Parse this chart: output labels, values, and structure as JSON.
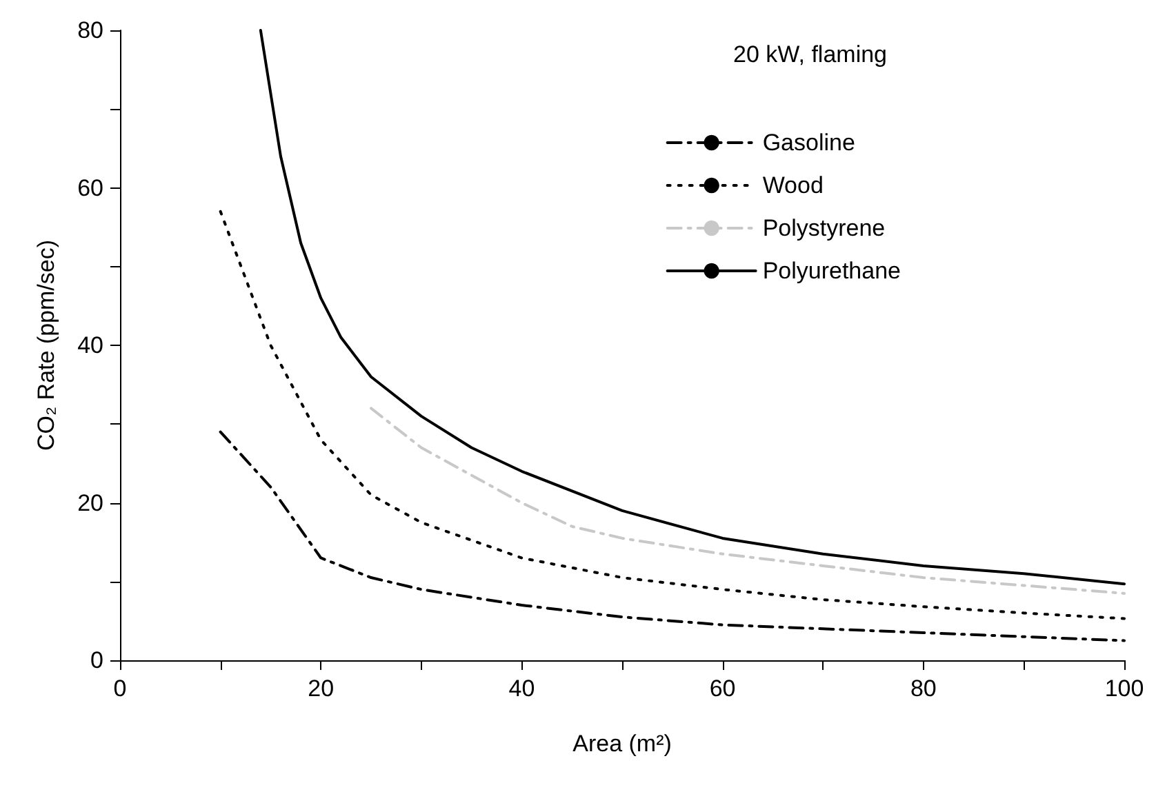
{
  "chart_data": {
    "type": "line",
    "title": "20 kW, flaming",
    "xlabel": "Area (m²)",
    "ylabel": "CO₂ Rate (ppm/sec)",
    "xlim": [
      0,
      100
    ],
    "ylim": [
      0,
      80
    ],
    "xticks": [
      0,
      {
        "value": 10,
        "label": null
      },
      20,
      {
        "value": 30,
        "label": null
      },
      40,
      {
        "value": 50,
        "label": null
      },
      60,
      {
        "value": 70,
        "label": null
      },
      80,
      {
        "value": 90,
        "label": null
      },
      100
    ],
    "yticks": [
      0,
      {
        "value": 10,
        "label": null
      },
      20,
      {
        "value": 30,
        "label": null
      },
      40,
      {
        "value": 50,
        "label": null
      },
      60,
      {
        "value": 70,
        "label": null
      },
      80
    ],
    "grid": false,
    "legend": "top right",
    "marker": "none",
    "series": [
      {
        "name": "Gasoline",
        "color": "#000000",
        "line_style": "dashed",
        "x": [
          10,
          15,
          20,
          25,
          30,
          40,
          50,
          60,
          70,
          80,
          90,
          100
        ],
        "values": [
          29,
          22,
          13,
          10.5,
          9,
          7,
          5.5,
          4.5,
          4,
          3.5,
          3,
          2.5
        ]
      },
      {
        "name": "Wood",
        "color": "#000000",
        "line_style": "dotted",
        "x": [
          10,
          15,
          20,
          25,
          30,
          40,
          50,
          60,
          70,
          80,
          90,
          100
        ],
        "values": [
          57,
          40,
          28,
          21,
          17.5,
          13,
          10.5,
          9,
          7.7,
          6.8,
          6,
          5.3
        ]
      },
      {
        "name": "Polystyrene",
        "color": "#c8c8c8",
        "line_style": "dashed",
        "x": [
          25,
          30,
          40,
          45,
          50,
          60,
          70,
          80,
          90,
          100
        ],
        "values": [
          32,
          27,
          20,
          17,
          15.5,
          13.5,
          12,
          10.5,
          9.5,
          8.5
        ]
      },
      {
        "name": "Polyurethane",
        "color": "#000000",
        "line_style": "solid",
        "x": [
          14,
          16,
          18,
          20,
          22,
          25,
          30,
          35,
          40,
          50,
          60,
          70,
          80,
          90,
          100
        ],
        "values": [
          80,
          64,
          53,
          46,
          41,
          36,
          31,
          27,
          24,
          19,
          15.5,
          13.5,
          12,
          11,
          9.7
        ]
      }
    ]
  }
}
